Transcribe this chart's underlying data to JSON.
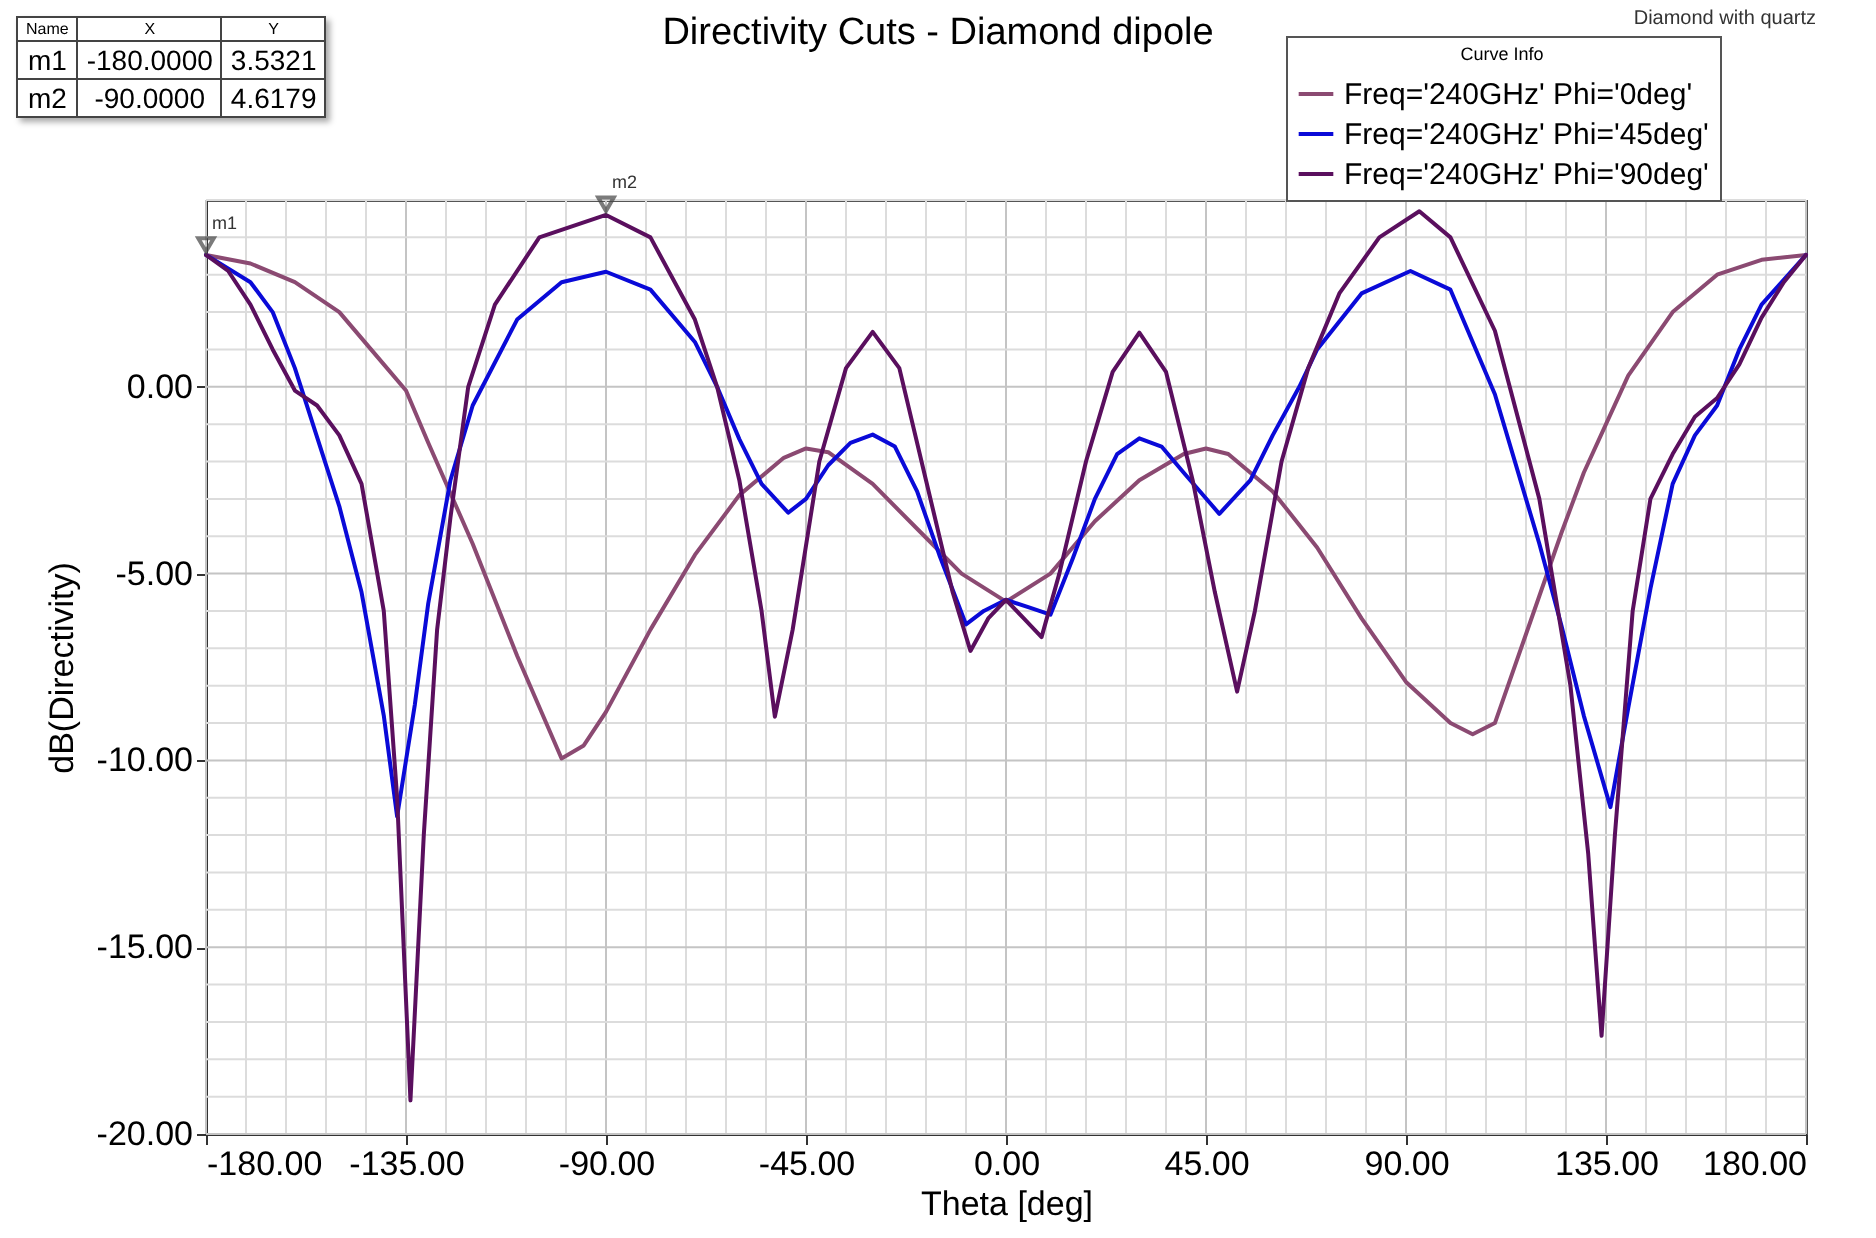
{
  "chart_data": {
    "type": "line",
    "title": "Directivity Cuts - Diamond dipole",
    "xlabel": "Theta [deg]",
    "ylabel": "dB(Directivity)",
    "legend_title": "Curve Info",
    "legend": "top right",
    "grid": true,
    "xlim": [
      -180,
      180
    ],
    "ylim": [
      -20,
      5
    ],
    "xticks": [
      {
        "value": -180,
        "label": "-180.00"
      },
      {
        "value": -171,
        "label": null
      },
      {
        "value": -162,
        "label": null
      },
      {
        "value": -153,
        "label": null
      },
      {
        "value": -144,
        "label": null
      },
      {
        "value": -135,
        "label": "-135.00"
      },
      {
        "value": -126,
        "label": null
      },
      {
        "value": -117,
        "label": null
      },
      {
        "value": -108,
        "label": null
      },
      {
        "value": -99,
        "label": null
      },
      {
        "value": -90,
        "label": "-90.00"
      },
      {
        "value": -81,
        "label": null
      },
      {
        "value": -72,
        "label": null
      },
      {
        "value": -63,
        "label": null
      },
      {
        "value": -54,
        "label": null
      },
      {
        "value": -45,
        "label": "-45.00"
      },
      {
        "value": -36,
        "label": null
      },
      {
        "value": -27,
        "label": null
      },
      {
        "value": -18,
        "label": null
      },
      {
        "value": -9,
        "label": null
      },
      {
        "value": 0,
        "label": "0.00"
      },
      {
        "value": 9,
        "label": null
      },
      {
        "value": 18,
        "label": null
      },
      {
        "value": 27,
        "label": null
      },
      {
        "value": 36,
        "label": null
      },
      {
        "value": 45,
        "label": "45.00"
      },
      {
        "value": 54,
        "label": null
      },
      {
        "value": 63,
        "label": null
      },
      {
        "value": 72,
        "label": null
      },
      {
        "value": 81,
        "label": null
      },
      {
        "value": 90,
        "label": "90.00"
      },
      {
        "value": 99,
        "label": null
      },
      {
        "value": 108,
        "label": null
      },
      {
        "value": 117,
        "label": null
      },
      {
        "value": 126,
        "label": null
      },
      {
        "value": 135,
        "label": "135.00"
      },
      {
        "value": 144,
        "label": null
      },
      {
        "value": 153,
        "label": null
      },
      {
        "value": 162,
        "label": null
      },
      {
        "value": 171,
        "label": null
      },
      {
        "value": 180,
        "label": "180.00"
      }
    ],
    "yticks": [
      {
        "value": -20,
        "label": "-20.00"
      },
      {
        "value": -19,
        "label": null
      },
      {
        "value": -18,
        "label": null
      },
      {
        "value": -17,
        "label": null
      },
      {
        "value": -16,
        "label": null
      },
      {
        "value": -15,
        "label": "-15.00"
      },
      {
        "value": -14,
        "label": null
      },
      {
        "value": -13,
        "label": null
      },
      {
        "value": -12,
        "label": null
      },
      {
        "value": -11,
        "label": null
      },
      {
        "value": -10,
        "label": "-10.00"
      },
      {
        "value": -9,
        "label": null
      },
      {
        "value": -8,
        "label": null
      },
      {
        "value": -7,
        "label": null
      },
      {
        "value": -6,
        "label": null
      },
      {
        "value": -5,
        "label": "-5.00"
      },
      {
        "value": -4,
        "label": null
      },
      {
        "value": -3,
        "label": null
      },
      {
        "value": -2,
        "label": null
      },
      {
        "value": -1,
        "label": null
      },
      {
        "value": 0,
        "label": "0.00"
      },
      {
        "value": 1,
        "label": null
      },
      {
        "value": 2,
        "label": null
      },
      {
        "value": 3,
        "label": null
      },
      {
        "value": 4,
        "label": null
      },
      {
        "value": 5,
        "label": null
      }
    ],
    "annotations": [
      {
        "text": "m1",
        "x": -180,
        "y": 3.5321
      },
      {
        "text": "m2",
        "x": -90,
        "y": 4.6179
      },
      "Name",
      "X",
      "Y",
      "m1",
      "-180.0000",
      "3.5321",
      "m2",
      "-90.0000",
      "4.6179",
      "Diamond with quartz"
    ],
    "series": [
      {
        "name": "Freq='240GHz' Phi='0deg'",
        "color": "#8b4a72",
        "x": [
          -180,
          -170,
          -160,
          -150,
          -140,
          -135,
          -130,
          -120,
          -110,
          -100,
          -95,
          -90,
          -80,
          -70,
          -60,
          -50,
          -45,
          -40,
          -30,
          -20,
          -10,
          0,
          10,
          20,
          30,
          40,
          45,
          50,
          60,
          70,
          80,
          90,
          100,
          105,
          110,
          120,
          125,
          130,
          135,
          140,
          150,
          160,
          170,
          180
        ],
        "values": [
          3.53,
          3.3,
          2.8,
          2.0,
          0.6,
          -0.1,
          -1.5,
          -4.2,
          -7.2,
          -9.95,
          -9.6,
          -8.7,
          -6.5,
          -4.5,
          -2.9,
          -1.9,
          -1.65,
          -1.75,
          -2.6,
          -3.8,
          -5.0,
          -5.75,
          -5.0,
          -3.6,
          -2.5,
          -1.8,
          -1.65,
          -1.8,
          -2.8,
          -4.3,
          -6.2,
          -7.9,
          -9.0,
          -9.3,
          -9.0,
          -5.6,
          -3.9,
          -2.3,
          -1.0,
          0.3,
          2.0,
          3.0,
          3.4,
          3.53
        ]
      },
      {
        "name": "Freq='240GHz' Phi='45deg'",
        "color": "#0a0ad8",
        "x": [
          -180,
          -170,
          -165,
          -160,
          -150,
          -145,
          -140,
          -137,
          -133,
          -130,
          -125,
          -120,
          -110,
          -100,
          -90,
          -80,
          -70,
          -65,
          -60,
          -55,
          -49,
          -45,
          -40,
          -35,
          -30,
          -25,
          -20,
          -15,
          -9,
          -5,
          0,
          5,
          10,
          15,
          20,
          25,
          30,
          35,
          40,
          48,
          55,
          60,
          66,
          70,
          80,
          91,
          100,
          110,
          120,
          125,
          130,
          136,
          140,
          145,
          150,
          155,
          160,
          165,
          170,
          180
        ],
        "values": [
          3.53,
          2.8,
          2.0,
          0.5,
          -3.2,
          -5.5,
          -8.8,
          -11.5,
          -8.5,
          -5.8,
          -2.5,
          -0.5,
          1.8,
          2.8,
          3.08,
          2.6,
          1.2,
          0,
          -1.4,
          -2.6,
          -3.37,
          -3.0,
          -2.1,
          -1.5,
          -1.28,
          -1.6,
          -2.8,
          -4.5,
          -6.36,
          -6.0,
          -5.7,
          -5.9,
          -6.1,
          -4.6,
          -3.0,
          -1.8,
          -1.38,
          -1.6,
          -2.3,
          -3.4,
          -2.5,
          -1.3,
          0,
          1.0,
          2.5,
          3.1,
          2.6,
          -0.2,
          -4.2,
          -6.4,
          -8.8,
          -11.25,
          -8.6,
          -5.4,
          -2.6,
          -1.3,
          -0.5,
          1.0,
          2.2,
          3.53
        ]
      },
      {
        "name": "Freq='240GHz' Phi='90deg'",
        "color": "#5a0f5e",
        "x": [
          -180,
          -175,
          -170,
          -165,
          -160,
          -155,
          -150,
          -145,
          -140,
          -137,
          -134,
          -131,
          -128,
          -125,
          -121,
          -115,
          -105,
          -90,
          -80,
          -70,
          -65,
          -60,
          -55,
          -52,
          -48,
          -42,
          -36,
          -30,
          -24,
          -18,
          -12,
          -8,
          -4,
          0,
          4,
          8,
          12,
          18,
          24,
          30,
          36,
          42,
          47,
          52,
          56,
          62,
          68,
          75,
          84,
          93,
          100,
          110,
          120,
          127,
          131,
          134,
          137,
          141,
          145,
          150,
          155,
          160,
          165,
          170,
          175,
          180
        ],
        "values": [
          3.53,
          3.1,
          2.2,
          1.0,
          -0.1,
          -0.5,
          -1.3,
          -2.6,
          -6.0,
          -11.0,
          -19.1,
          -12.0,
          -6.5,
          -3.5,
          0,
          2.2,
          4.0,
          4.6,
          4.0,
          1.8,
          0,
          -2.5,
          -6.0,
          -8.83,
          -6.5,
          -2.0,
          0.5,
          1.47,
          0.5,
          -2.5,
          -5.5,
          -7.07,
          -6.2,
          -5.7,
          -6.2,
          -6.7,
          -5.0,
          -2.0,
          0.4,
          1.45,
          0.4,
          -2.5,
          -5.5,
          -8.16,
          -6.0,
          -2.0,
          0.5,
          2.5,
          4.0,
          4.7,
          4.0,
          1.5,
          -3.0,
          -8.0,
          -12.5,
          -17.37,
          -12.0,
          -6.0,
          -3.0,
          -1.8,
          -0.8,
          -0.3,
          0.6,
          1.85,
          2.8,
          3.53
        ]
      }
    ]
  }
}
